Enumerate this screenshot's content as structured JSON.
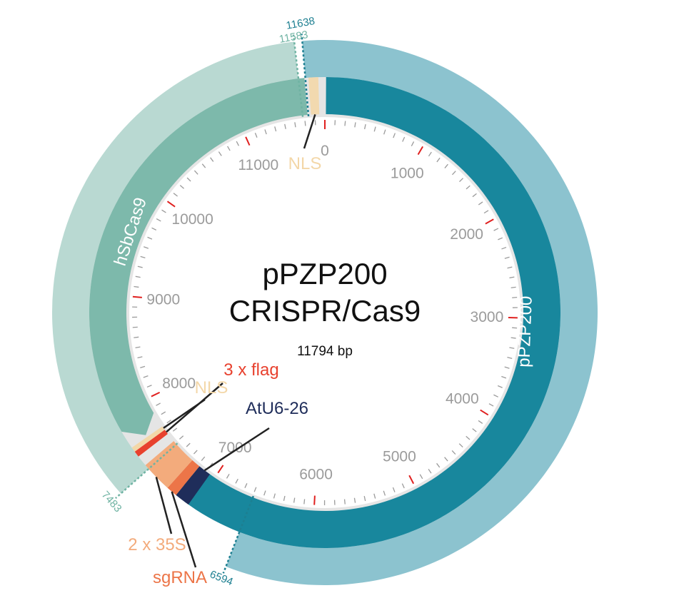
{
  "plasmid": {
    "name_line1": "pPZP200",
    "name_line2": "CRISPR/Cas9",
    "size_text": "11794 bp",
    "length": 11794
  },
  "scale": {
    "labels": [
      {
        "value": 0,
        "text": "0"
      },
      {
        "value": 1000,
        "text": "1000"
      },
      {
        "value": 2000,
        "text": "2000"
      },
      {
        "value": 3000,
        "text": "3000"
      },
      {
        "value": 4000,
        "text": "4000"
      },
      {
        "value": 5000,
        "text": "5000"
      },
      {
        "value": 6000,
        "text": "6000"
      },
      {
        "value": 7000,
        "text": "7000"
      },
      {
        "value": 8000,
        "text": "8000"
      },
      {
        "value": 9000,
        "text": "9000"
      },
      {
        "value": 10000,
        "text": "10000"
      },
      {
        "value": 11000,
        "text": "11000"
      }
    ]
  },
  "regions": [
    {
      "name": "hSbCas9",
      "start": 7483,
      "end": 11583,
      "color": "#b9d9d2"
    },
    {
      "name": "pPZP200",
      "start": 11638,
      "end": 6594,
      "color": "#8cc3cf"
    }
  ],
  "positions": [
    {
      "value": 11638,
      "text": "11638",
      "color": "#1d7f91"
    },
    {
      "value": 11583,
      "text": "11583",
      "color": "#6fb3a3"
    },
    {
      "value": 7483,
      "text": "7483",
      "color": "#6fb3a3"
    },
    {
      "value": 6594,
      "text": "6594",
      "color": "#1d7f91"
    }
  ],
  "features": [
    {
      "name": "pPZP200",
      "color": "#18879d"
    },
    {
      "name": "hSbCas9",
      "color": "#7db9ab"
    },
    {
      "name": "NLS",
      "color": "#f3d7a8"
    },
    {
      "name": "3 x flag",
      "color": "#e8412e"
    },
    {
      "name": "NLS",
      "color": "#f3d7a8"
    },
    {
      "name": "AtU6-26",
      "color": "#1f2d5a"
    },
    {
      "name": "sgRNA",
      "color": "#ec7548"
    },
    {
      "name": "2 x 35S",
      "color": "#f3ab7c"
    }
  ],
  "colors": {
    "tick": "#9b9b9b",
    "major_tick": "#e0201f",
    "backbone": "#e5e5e5",
    "leader": "#222222"
  }
}
